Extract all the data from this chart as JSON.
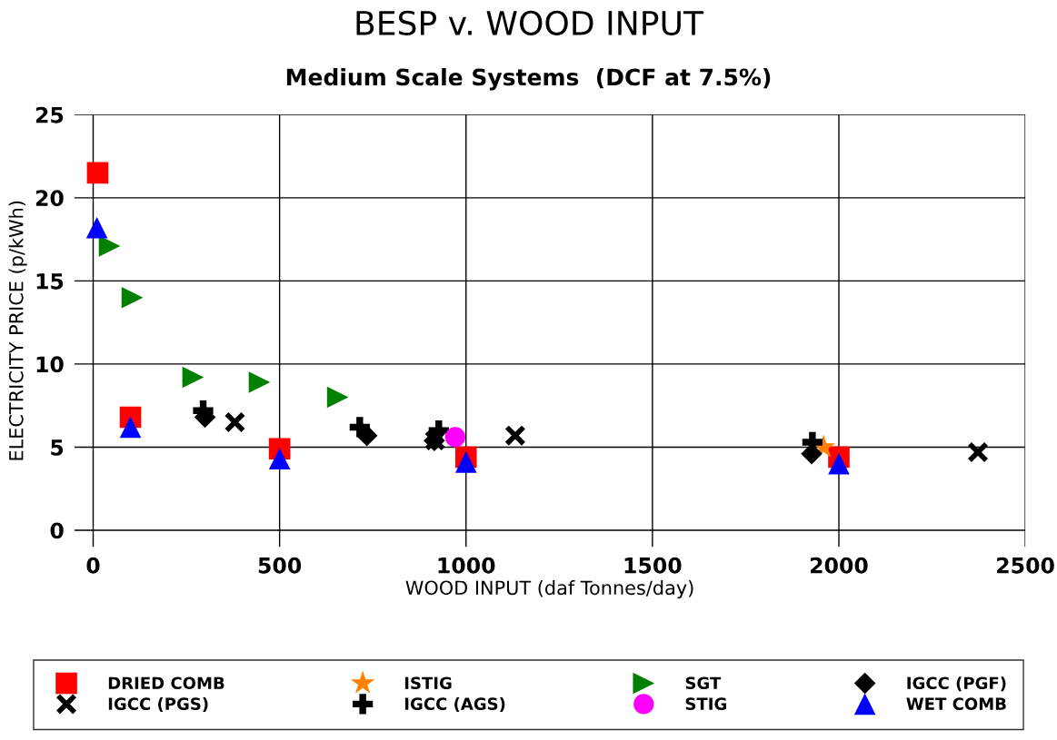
{
  "chart_data": {
    "type": "scatter",
    "title": "BESP v. WOOD INPUT",
    "subtitle": "Medium Scale Systems  (DCF at 7.5%)",
    "xlabel": "WOOD INPUT (daf Tonnes/day)",
    "ylabel": "ELECTRICITY PRICE (p/kWh)",
    "xlim": [
      -50,
      2500
    ],
    "xticks": [
      0,
      500,
      1000,
      1500,
      2000,
      2500
    ],
    "ylim": [
      -1,
      25
    ],
    "yticks": [
      0,
      5,
      10,
      15,
      20,
      25
    ],
    "grid": true,
    "legend": "bottom",
    "series": [
      {
        "name": "DRIED COMB",
        "color": "#ff0000",
        "marker": "square",
        "x": [
          12,
          100,
          500,
          1000,
          2000
        ],
        "values": [
          21.5,
          6.8,
          4.9,
          4.4,
          4.4
        ]
      },
      {
        "name": "IGCC (PGS)",
        "color": "#000000",
        "marker": "cross",
        "x": [
          380,
          917,
          1132,
          2373
        ],
        "values": [
          6.5,
          5.4,
          5.7,
          4.7
        ]
      },
      {
        "name": "ISTIG",
        "color": "#ff8000",
        "marker": "star",
        "x": [
          1959
        ],
        "values": [
          5.0
        ]
      },
      {
        "name": "IGCC (AGS)",
        "color": "#000000",
        "marker": "plus",
        "x": [
          295,
          715,
          927,
          1929
        ],
        "values": [
          7.2,
          6.2,
          6.0,
          5.3
        ]
      },
      {
        "name": "SGT",
        "color": "#008000",
        "marker": "triangle-right",
        "x": [
          44,
          105,
          268,
          446,
          656
        ],
        "values": [
          17.1,
          14.0,
          9.2,
          8.9,
          8.0
        ]
      },
      {
        "name": "STIG",
        "color": "#ff00ff",
        "marker": "circle",
        "x": [
          971
        ],
        "values": [
          5.6
        ]
      },
      {
        "name": "IGCC (PGF)",
        "color": "#000000",
        "marker": "diamond",
        "x": [
          300,
          734,
          915,
          1927
        ],
        "values": [
          6.8,
          5.7,
          5.4,
          4.6
        ]
      },
      {
        "name": "WET COMB",
        "color": "#0000ff",
        "marker": "triangle",
        "x": [
          10,
          100,
          500,
          1000,
          2000
        ],
        "values": [
          18.2,
          6.2,
          4.3,
          4.1,
          4.0
        ]
      }
    ]
  }
}
